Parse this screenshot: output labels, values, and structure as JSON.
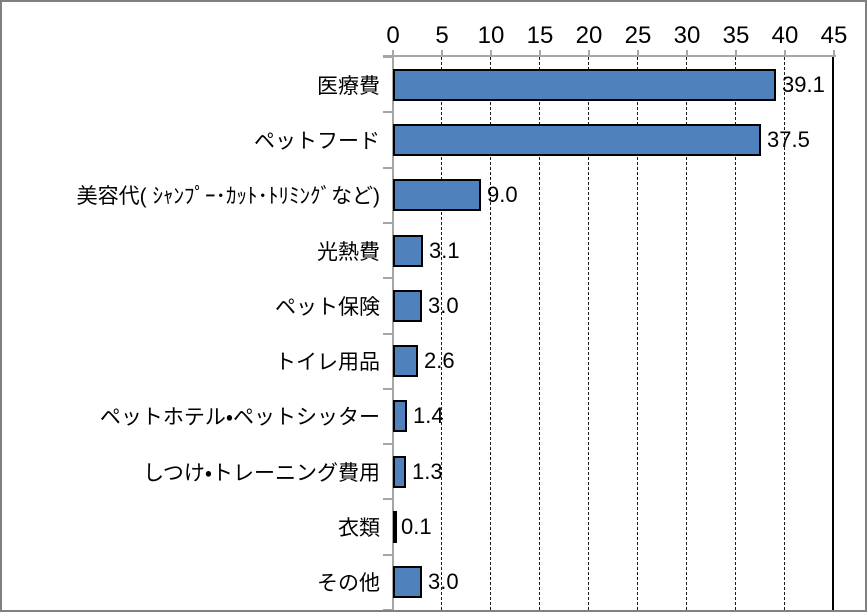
{
  "chart_data": {
    "type": "bar",
    "orientation": "horizontal",
    "title": "",
    "xlabel": "",
    "ylabel": "",
    "categories": [
      "医療費",
      "ペットフード",
      "美容代( ｼｬﾝﾌﾟｰ･ｶｯﾄ･ﾄﾘﾐﾝｸﾞなど)",
      "光熱費",
      "ペット保険",
      "トイレ用品",
      "ペットホテル・ペットシッター",
      "しつけ・トレーニング費用",
      "衣類",
      "その他"
    ],
    "values": [
      39.1,
      37.5,
      9.0,
      3.1,
      3.0,
      2.6,
      1.4,
      1.3,
      0.1,
      3.0
    ],
    "value_labels": [
      "39.1",
      "37.5",
      "9.0",
      "3.1",
      "3.0",
      "2.6",
      "1.4",
      "1.3",
      "0.1",
      "3.0"
    ],
    "xlim": [
      0,
      45
    ],
    "x_ticks": [
      0,
      5,
      10,
      15,
      20,
      25,
      30,
      35,
      40,
      45
    ],
    "axis_position": "top",
    "grid": "vertical-dashed",
    "legend": "none",
    "colors": {
      "bar_fill": "#4f81bd",
      "bar_border": "#000000",
      "axis_line": "#a6a6a6",
      "gridline": "#1a1a1a",
      "text": "#000000",
      "frame_border": "#808080",
      "background": "#ffffff"
    }
  }
}
